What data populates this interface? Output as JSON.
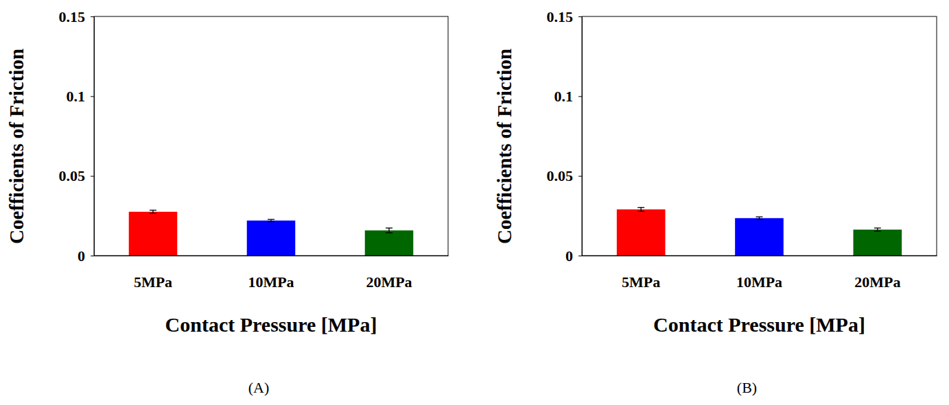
{
  "chart_data": [
    {
      "type": "bar",
      "title": "(A)",
      "x_label": "Contact Pressure [MPa]",
      "y_label": "Coefficients of Friction",
      "categories": [
        "5MPa",
        "10MPa",
        "20MPa"
      ],
      "values": [
        0.0275,
        0.022,
        0.0158
      ],
      "errors": [
        0.001,
        0.0007,
        0.0015
      ],
      "colors": [
        "#ff0000",
        "#0000ff",
        "#006600"
      ],
      "ylim": [
        0,
        0.15
      ],
      "yticks": [
        0,
        0.05,
        0.1,
        0.15
      ],
      "grid": false
    },
    {
      "type": "bar",
      "title": "(B)",
      "x_label": "Contact Pressure [MPa]",
      "y_label": "Coefficients of Friction",
      "categories": [
        "5MPa",
        "10MPa",
        "20MPa"
      ],
      "values": [
        0.029,
        0.0235,
        0.0163
      ],
      "errors": [
        0.0012,
        0.0008,
        0.001
      ],
      "colors": [
        "#ff0000",
        "#0000ff",
        "#006600"
      ],
      "ylim": [
        0,
        0.15
      ],
      "yticks": [
        0,
        0.05,
        0.1,
        0.15
      ],
      "grid": false
    }
  ]
}
